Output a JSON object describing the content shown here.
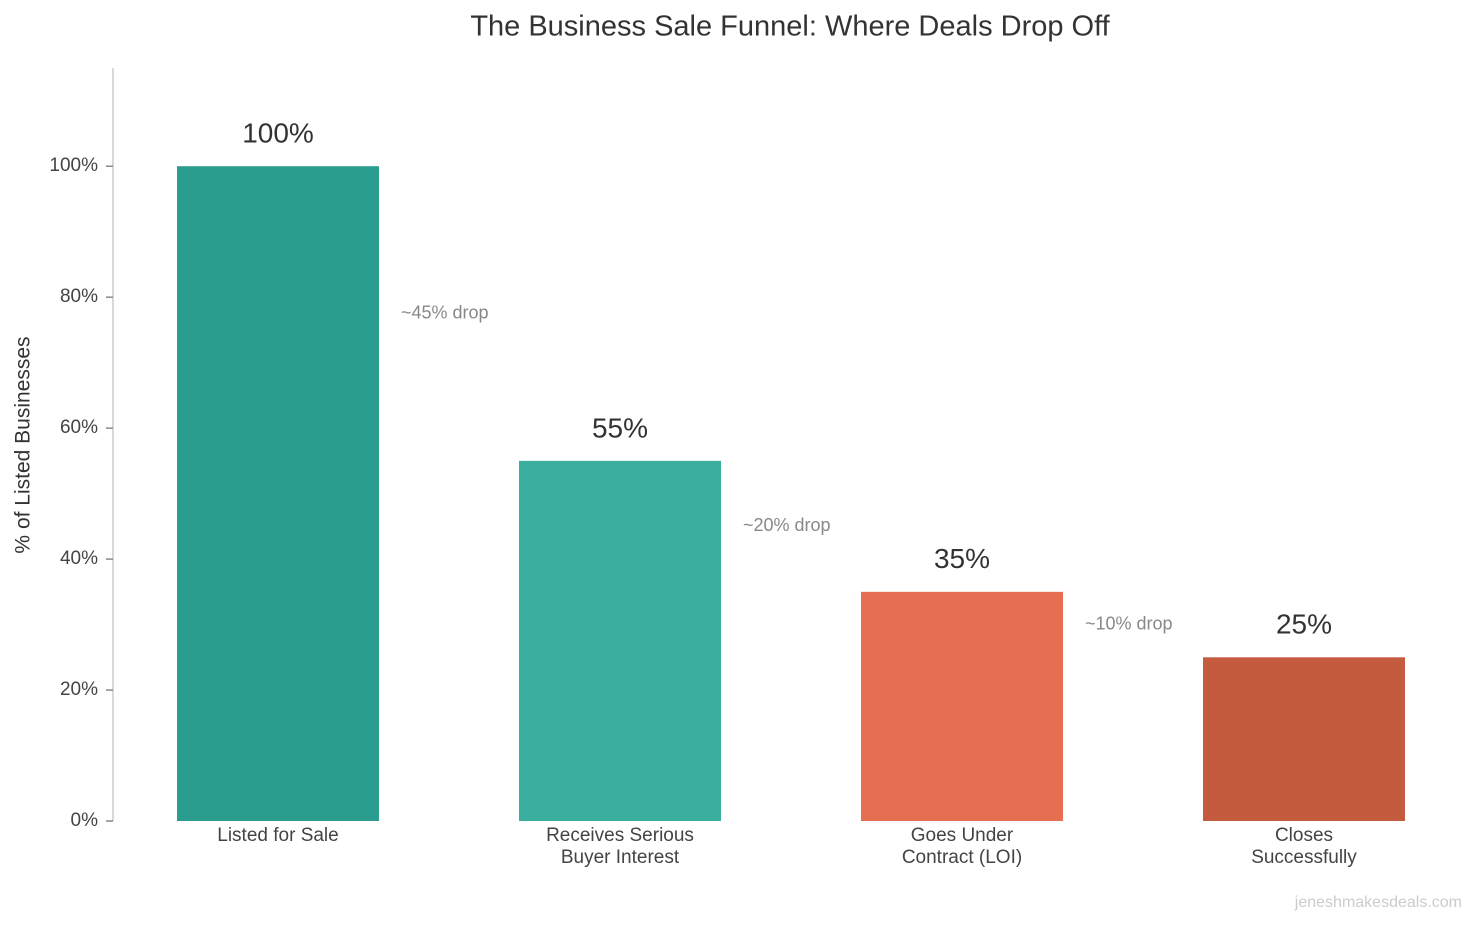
{
  "chart_data": {
    "type": "bar",
    "title": "The Business Sale Funnel: Where Deals Drop Off",
    "y_label": "% of Listed Businesses",
    "categories": [
      "Listed for Sale",
      "Receives Serious\nBuyer Interest",
      "Goes Under\nContract (LOI)",
      "Closes\nSuccessfully"
    ],
    "values": [
      100,
      55,
      35,
      25
    ],
    "value_labels": [
      "100%",
      "55%",
      "35%",
      "25%"
    ],
    "colors": [
      "#2a9d8f",
      "#3aafa0",
      "#e76f51",
      "#c45b3e"
    ],
    "annotations": [
      "~45% drop",
      "~20% drop",
      "~10% drop"
    ],
    "ylim": [
      0,
      115
    ],
    "yticks": [
      {
        "value": 0,
        "label": "0%"
      },
      {
        "value": 20,
        "label": "20%"
      },
      {
        "value": 40,
        "label": "40%"
      },
      {
        "value": 60,
        "label": "60%"
      },
      {
        "value": 80,
        "label": "80%"
      },
      {
        "value": 100,
        "label": "100%"
      }
    ],
    "watermark": "jeneshmakesdeals.com"
  }
}
